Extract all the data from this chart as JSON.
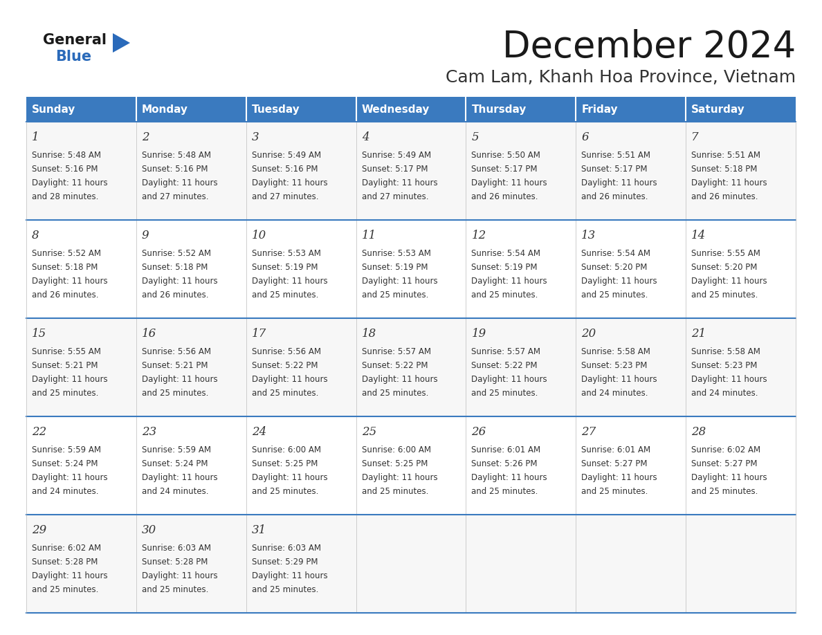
{
  "title": "December 2024",
  "subtitle": "Cam Lam, Khanh Hoa Province, Vietnam",
  "header_color": "#3a7abf",
  "header_text_color": "#ffffff",
  "border_color": "#3a7abf",
  "days_of_week": [
    "Sunday",
    "Monday",
    "Tuesday",
    "Wednesday",
    "Thursday",
    "Friday",
    "Saturday"
  ],
  "title_color": "#1a1a1a",
  "subtitle_color": "#333333",
  "logo_general_color": "#1a1a1a",
  "logo_blue_color": "#2a6aba",
  "cell_text_color": "#333333",
  "row_bg_even": "#f7f7f7",
  "row_bg_odd": "#ffffff",
  "calendar_data": [
    [
      {
        "day": 1,
        "sunrise": "5:48 AM",
        "sunset": "5:16 PM",
        "daylight": "11 hours\nand 28 minutes."
      },
      {
        "day": 2,
        "sunrise": "5:48 AM",
        "sunset": "5:16 PM",
        "daylight": "11 hours\nand 27 minutes."
      },
      {
        "day": 3,
        "sunrise": "5:49 AM",
        "sunset": "5:16 PM",
        "daylight": "11 hours\nand 27 minutes."
      },
      {
        "day": 4,
        "sunrise": "5:49 AM",
        "sunset": "5:17 PM",
        "daylight": "11 hours\nand 27 minutes."
      },
      {
        "day": 5,
        "sunrise": "5:50 AM",
        "sunset": "5:17 PM",
        "daylight": "11 hours\nand 26 minutes."
      },
      {
        "day": 6,
        "sunrise": "5:51 AM",
        "sunset": "5:17 PM",
        "daylight": "11 hours\nand 26 minutes."
      },
      {
        "day": 7,
        "sunrise": "5:51 AM",
        "sunset": "5:18 PM",
        "daylight": "11 hours\nand 26 minutes."
      }
    ],
    [
      {
        "day": 8,
        "sunrise": "5:52 AM",
        "sunset": "5:18 PM",
        "daylight": "11 hours\nand 26 minutes."
      },
      {
        "day": 9,
        "sunrise": "5:52 AM",
        "sunset": "5:18 PM",
        "daylight": "11 hours\nand 26 minutes."
      },
      {
        "day": 10,
        "sunrise": "5:53 AM",
        "sunset": "5:19 PM",
        "daylight": "11 hours\nand 25 minutes."
      },
      {
        "day": 11,
        "sunrise": "5:53 AM",
        "sunset": "5:19 PM",
        "daylight": "11 hours\nand 25 minutes."
      },
      {
        "day": 12,
        "sunrise": "5:54 AM",
        "sunset": "5:19 PM",
        "daylight": "11 hours\nand 25 minutes."
      },
      {
        "day": 13,
        "sunrise": "5:54 AM",
        "sunset": "5:20 PM",
        "daylight": "11 hours\nand 25 minutes."
      },
      {
        "day": 14,
        "sunrise": "5:55 AM",
        "sunset": "5:20 PM",
        "daylight": "11 hours\nand 25 minutes."
      }
    ],
    [
      {
        "day": 15,
        "sunrise": "5:55 AM",
        "sunset": "5:21 PM",
        "daylight": "11 hours\nand 25 minutes."
      },
      {
        "day": 16,
        "sunrise": "5:56 AM",
        "sunset": "5:21 PM",
        "daylight": "11 hours\nand 25 minutes."
      },
      {
        "day": 17,
        "sunrise": "5:56 AM",
        "sunset": "5:22 PM",
        "daylight": "11 hours\nand 25 minutes."
      },
      {
        "day": 18,
        "sunrise": "5:57 AM",
        "sunset": "5:22 PM",
        "daylight": "11 hours\nand 25 minutes."
      },
      {
        "day": 19,
        "sunrise": "5:57 AM",
        "sunset": "5:22 PM",
        "daylight": "11 hours\nand 25 minutes."
      },
      {
        "day": 20,
        "sunrise": "5:58 AM",
        "sunset": "5:23 PM",
        "daylight": "11 hours\nand 24 minutes."
      },
      {
        "day": 21,
        "sunrise": "5:58 AM",
        "sunset": "5:23 PM",
        "daylight": "11 hours\nand 24 minutes."
      }
    ],
    [
      {
        "day": 22,
        "sunrise": "5:59 AM",
        "sunset": "5:24 PM",
        "daylight": "11 hours\nand 24 minutes."
      },
      {
        "day": 23,
        "sunrise": "5:59 AM",
        "sunset": "5:24 PM",
        "daylight": "11 hours\nand 24 minutes."
      },
      {
        "day": 24,
        "sunrise": "6:00 AM",
        "sunset": "5:25 PM",
        "daylight": "11 hours\nand 25 minutes."
      },
      {
        "day": 25,
        "sunrise": "6:00 AM",
        "sunset": "5:25 PM",
        "daylight": "11 hours\nand 25 minutes."
      },
      {
        "day": 26,
        "sunrise": "6:01 AM",
        "sunset": "5:26 PM",
        "daylight": "11 hours\nand 25 minutes."
      },
      {
        "day": 27,
        "sunrise": "6:01 AM",
        "sunset": "5:27 PM",
        "daylight": "11 hours\nand 25 minutes."
      },
      {
        "day": 28,
        "sunrise": "6:02 AM",
        "sunset": "5:27 PM",
        "daylight": "11 hours\nand 25 minutes."
      }
    ],
    [
      {
        "day": 29,
        "sunrise": "6:02 AM",
        "sunset": "5:28 PM",
        "daylight": "11 hours\nand 25 minutes."
      },
      {
        "day": 30,
        "sunrise": "6:03 AM",
        "sunset": "5:28 PM",
        "daylight": "11 hours\nand 25 minutes."
      },
      {
        "day": 31,
        "sunrise": "6:03 AM",
        "sunset": "5:29 PM",
        "daylight": "11 hours\nand 25 minutes."
      },
      null,
      null,
      null,
      null
    ]
  ]
}
